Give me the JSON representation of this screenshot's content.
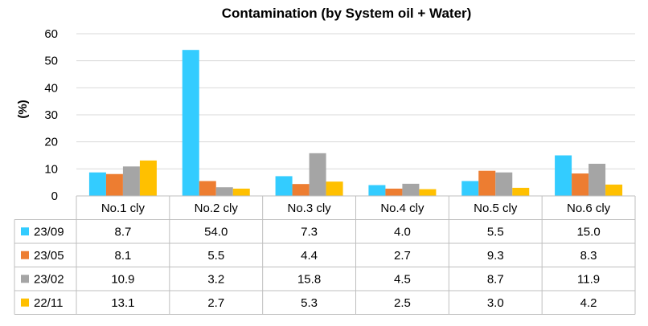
{
  "chart_data": {
    "type": "bar",
    "title": "Contamination (by System oil + Water)",
    "ylabel": "(%)",
    "xlabel": "",
    "ylim": [
      0,
      60
    ],
    "yticks": [
      0,
      10,
      20,
      30,
      40,
      50,
      60
    ],
    "grid": true,
    "legend": "data-table",
    "categories": [
      "No.1 cly",
      "No.2 cly",
      "No.3 cly",
      "No.4 cly",
      "No.5 cly",
      "No.6 cly"
    ],
    "series": [
      {
        "name": "23/09",
        "color": "#33ccff",
        "values": [
          8.7,
          54.0,
          7.3,
          4.0,
          5.5,
          15.0
        ],
        "labels": [
          "8.7",
          "54.0",
          "7.3",
          "4.0",
          "5.5",
          "15.0"
        ]
      },
      {
        "name": "23/05",
        "color": "#ed7d31",
        "values": [
          8.1,
          5.5,
          4.4,
          2.7,
          9.3,
          8.3
        ],
        "labels": [
          "8.1",
          "5.5",
          "4.4",
          "2.7",
          "9.3",
          "8.3"
        ]
      },
      {
        "name": "23/02",
        "color": "#a5a5a5",
        "values": [
          10.9,
          3.2,
          15.8,
          4.5,
          8.7,
          11.9
        ],
        "labels": [
          "10.9",
          "3.2",
          "15.8",
          "4.5",
          "8.7",
          "11.9"
        ]
      },
      {
        "name": "22/11",
        "color": "#ffc000",
        "values": [
          13.1,
          2.7,
          5.3,
          2.5,
          3.0,
          4.2
        ],
        "labels": [
          "13.1",
          "2.7",
          "5.3",
          "2.5",
          "3.0",
          "4.2"
        ]
      }
    ]
  }
}
